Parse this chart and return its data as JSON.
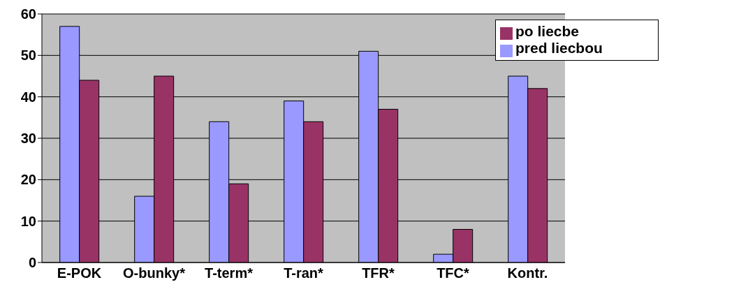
{
  "chart_data": {
    "type": "bar",
    "categories": [
      "E-POK",
      "O-bunky*",
      "T-term*",
      "T-ran*",
      "TFR*",
      "TFC*",
      "Kontr."
    ],
    "series": [
      {
        "name": "pred liecbou",
        "color": "#9999ff",
        "values": [
          57,
          16,
          34,
          39,
          51,
          2,
          45
        ]
      },
      {
        "name": "po liecbe",
        "color": "#993366",
        "values": [
          44,
          45,
          19,
          34,
          37,
          8,
          42
        ]
      }
    ],
    "ylim": [
      0,
      60
    ],
    "yticks": [
      0,
      10,
      20,
      30,
      40,
      50,
      60
    ],
    "grid": "y",
    "legend": "top right"
  }
}
